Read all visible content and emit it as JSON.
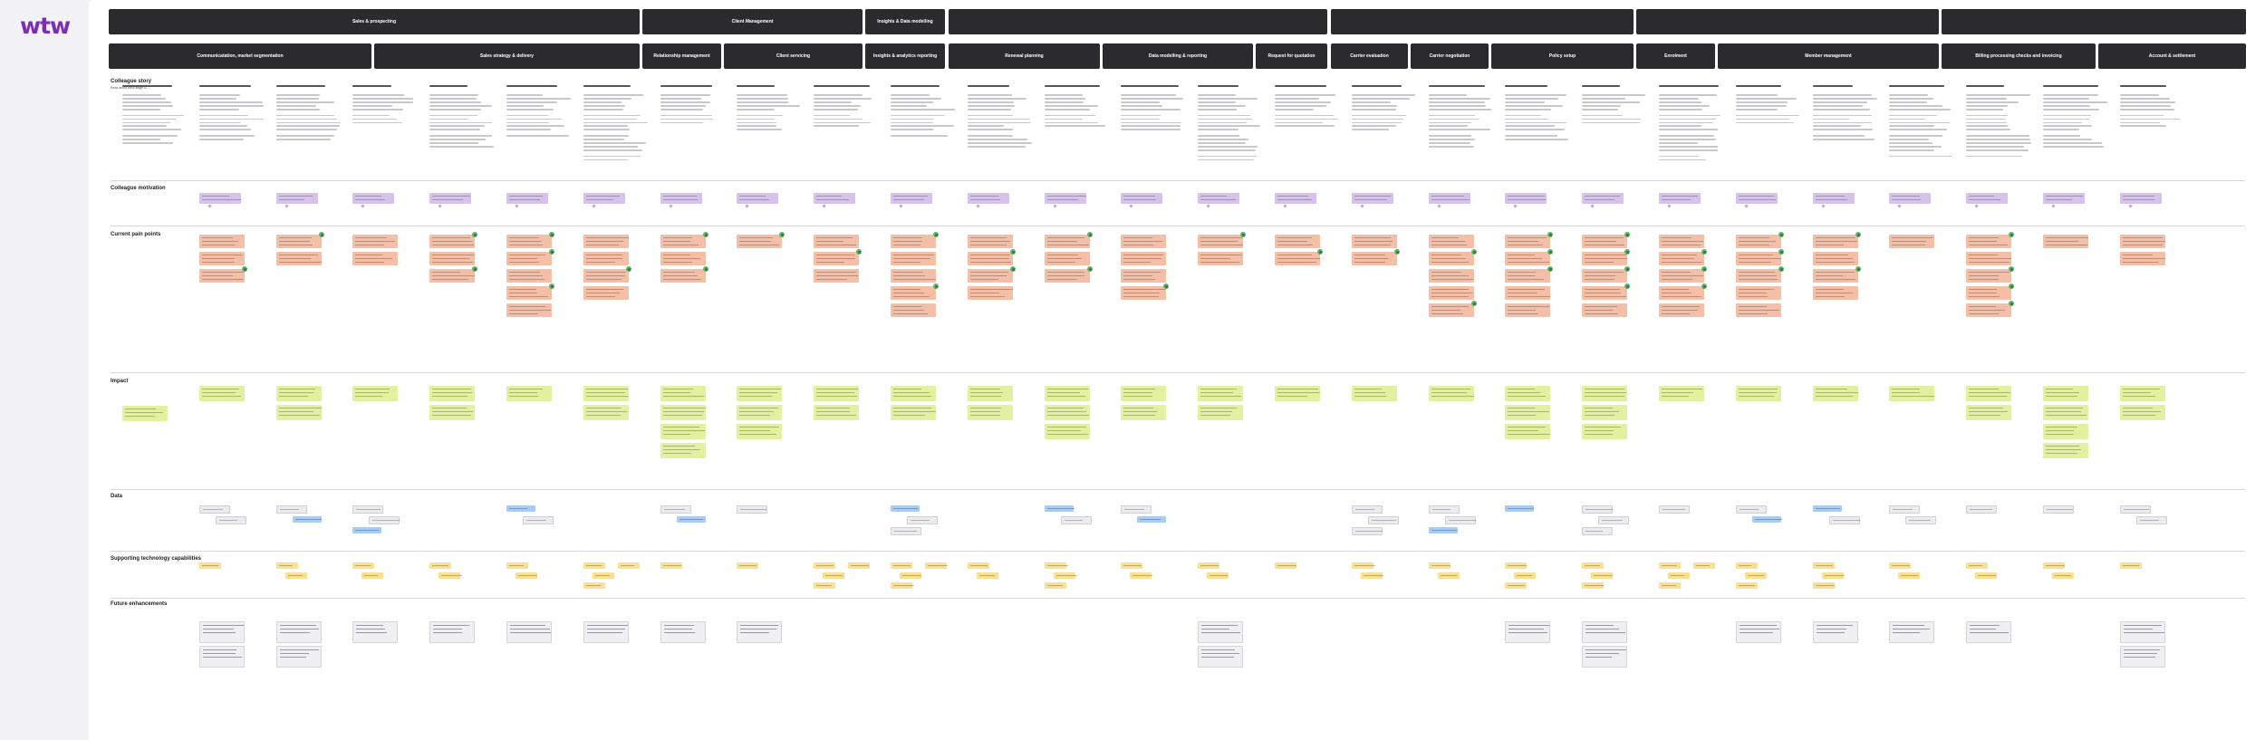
{
  "logo": "wtw",
  "top_headers": [
    "Sales & prospecting",
    "Client Management",
    "Insights & Data modelling",
    "",
    "",
    ""
  ],
  "sub_headers": [
    "Communicatation, market segmentation",
    "Sales strategy & delivery",
    "Relationship management",
    "Client servicing",
    "Insights & analytics reporting",
    "Renewal planning",
    "Data modelling & reporting",
    "Request for quotation",
    "Carrier evaluation",
    "Carrier negotiation",
    "Policy setup",
    "Enrolment",
    "Member management",
    "Billing processing checks and invoicing",
    "Account & settlement"
  ],
  "rows": {
    "story": {
      "label": "Colleague story",
      "sub": "Read about each stage & ..."
    },
    "motivation": {
      "label": "Colleague motivation"
    },
    "pain": {
      "label": "Current pain points"
    },
    "impact": {
      "label": "Impact"
    },
    "data": {
      "label": "Data"
    },
    "tech": {
      "label": "Supporting technology capabilities"
    },
    "future": {
      "label": "Future enhancements"
    }
  },
  "colors": {
    "header": "#2b2b2e",
    "motivation": "#d7c2ec",
    "pain": "#f5bfa7",
    "impact": "#e3f0a0",
    "data_blue": "#a9cdf2",
    "tech": "#fbe08f",
    "resolved": "#5fb36a",
    "brand": "#7b2fb0"
  }
}
